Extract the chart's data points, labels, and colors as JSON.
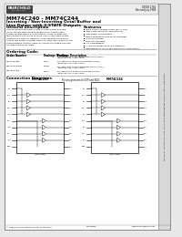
{
  "bg_color": "#e8e8e8",
  "page_bg": "#ffffff",
  "border_color": "#999999",
  "title_part": "MM74C240 - MM74C244",
  "title_line1": "Inverting / Non-Inverting Octal Buffer and",
  "title_line2": "Line Driver with 3-STATE Outputs",
  "section_general": "General Description",
  "section_features": "Features",
  "general_lines": [
    "This datasheet describes a pair of octal buffer and line",
    "driver circuits with complementary MOS (CMOS) inte-",
    "grated circuits with 3-STATE outputs. These outputs con-",
    "tain separate transistors to force nearly saturation mode",
    "cutoff on the internal switches. These devices have 8 dri-",
    "vers of low power Schottky gates, all high logic levels on the",
    "output disable controls open (Z) causes the outputs go into",
    "the high impedance state."
  ],
  "features_list": [
    "Wide supply voltage range (3V to 15V)",
    "High noise immunity 45%VDD typ.",
    "Low power consumption",
    "High capacitance load drive capability",
    "3-STATE outputs",
    "Low cost package",
    "TTL compatibility",
    "All inputs protected in the substrate",
    "High speed 24 ns typ (8V with 50 pF, MM74C240)"
  ],
  "section_ordering": "Ordering Code:",
  "ordering_headers": [
    "Order Number",
    "Package Number",
    "Package Description"
  ],
  "ordering_rows": [
    [
      "MM74C240WM",
      "M20B",
      "20-Lead Small Outline Integrated Circuit (SOIC), JEDEC MS-013, 0.300\" Wide"
    ],
    [
      "MM74C240N",
      "N20A",
      "20-Lead Plastic Dual-In-Line Package (PDIP), JEDEC MS-001, 0.300\" Wide"
    ],
    [
      "MM74C244WM",
      "M20B",
      "20-Lead Small Outline Integrated Circuit (SOIC), JEDEC MS-013, 0.300\" Wide"
    ],
    [
      "MM74C244N",
      "N20A",
      "20-Lead Plastic Dual-In-Line Package (PDIP), JEDEC MS-001, 0.300\" Wide"
    ]
  ],
  "section_connection": "Connection Diagrams",
  "pin_note": "Pin assignments for DIP and SOIC",
  "fairchild_logo_text": "FAIRCHILD",
  "logo_sub": "SEMICONDUCTOR",
  "side_text": "MM74C240 - MM74C244 Inverting / Non-Inverting Octal Buffer and Line Driver with 3-STATE Outputs",
  "bottom_text": "© 1988 Fairchild Semiconductor Corporation",
  "bottom_ds": "DS009885",
  "bottom_right": "www.fairchildsemi.com",
  "doc_number": "DS009 1781",
  "doc_date": "Revised July 1988",
  "left_ic_label": "MM74C240",
  "right_ic_label": "MM74C244",
  "left_pins_top": [
    "1G",
    "VCC"
  ],
  "right_pins_top": [
    "2G",
    "GND"
  ],
  "ic_pin_labels_left": [
    "1A1",
    "1Y1",
    "1A2",
    "1Y2",
    "1A3",
    "1Y3",
    "1A4",
    "1Y4"
  ],
  "ic_pin_labels_right": [
    "2Y4",
    "2A4",
    "2Y3",
    "2A3",
    "2Y2",
    "2A2",
    "2Y1",
    "2A1"
  ]
}
